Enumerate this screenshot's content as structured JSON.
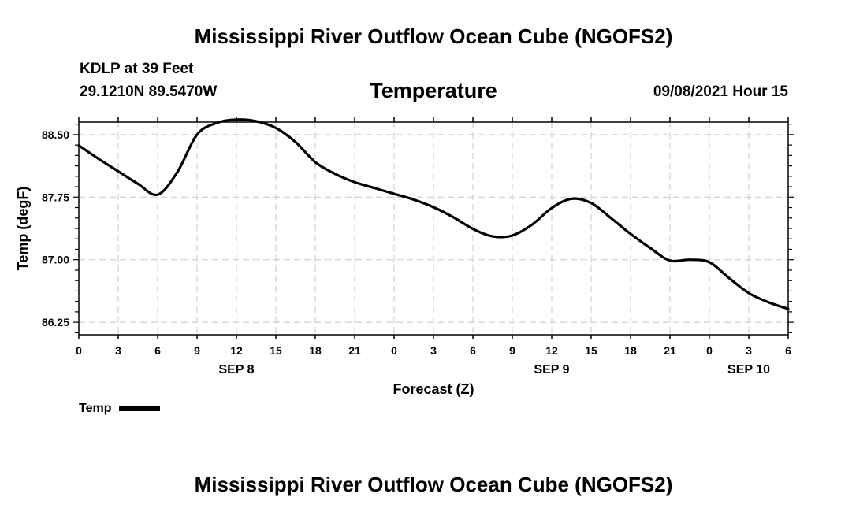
{
  "page": {
    "top_title": "Mississippi River Outflow Ocean Cube (NGOFS2)",
    "bottom_title": "Mississippi River Outflow Ocean Cube (NGOFS2)",
    "station": "KDLP at 39 Feet",
    "coords": "29.1210N  89.5470W",
    "variable_title": "Temperature",
    "datetime": "09/08/2021 Hour 15",
    "legend_label": "Temp"
  },
  "chart_data": {
    "type": "line",
    "title": "Temperature",
    "xlabel": "Forecast (Z)",
    "ylabel": "Temp (degF)",
    "x_unit": "hours since 2021-09-08 00Z",
    "xlim": [
      0,
      54
    ],
    "ylim": [
      86.1,
      88.65
    ],
    "x_ticks": [
      0,
      3,
      6,
      9,
      12,
      15,
      18,
      21,
      24,
      27,
      30,
      33,
      36,
      39,
      42,
      45,
      48,
      51,
      54
    ],
    "x_tick_labels": [
      "0",
      "3",
      "6",
      "9",
      "12",
      "15",
      "18",
      "21",
      "0",
      "3",
      "6",
      "9",
      "12",
      "15",
      "18",
      "21",
      "0",
      "3",
      "6"
    ],
    "day_labels": [
      {
        "x": 12,
        "label": "SEP 8"
      },
      {
        "x": 36,
        "label": "SEP 9"
      },
      {
        "x": 51,
        "label": "SEP 10"
      }
    ],
    "y_ticks": [
      86.25,
      87.0,
      87.75,
      88.5
    ],
    "y_tick_labels": [
      "86.25",
      "87.00",
      "87.75",
      "88.50"
    ],
    "grid": true,
    "series": [
      {
        "name": "Temp",
        "color": "#000000",
        "x": [
          0,
          1.5,
          3,
          4.5,
          6,
          7.5,
          9,
          10.5,
          12,
          13.5,
          15,
          16.5,
          18,
          19.5,
          21,
          22.5,
          24,
          25.5,
          27,
          28.5,
          30,
          31.5,
          33,
          34.5,
          36,
          37.5,
          39,
          40.5,
          42,
          43.5,
          45,
          46.5,
          48,
          49.5,
          51,
          52.5,
          54
        ],
        "values": [
          88.37,
          88.21,
          88.06,
          87.91,
          87.78,
          88.05,
          88.5,
          88.64,
          88.68,
          88.66,
          88.58,
          88.41,
          88.17,
          88.03,
          87.93,
          87.86,
          87.79,
          87.72,
          87.63,
          87.51,
          87.37,
          87.28,
          87.29,
          87.42,
          87.62,
          87.73,
          87.68,
          87.5,
          87.31,
          87.14,
          86.99,
          87.0,
          86.97,
          86.78,
          86.6,
          86.49,
          86.41
        ]
      }
    ]
  }
}
